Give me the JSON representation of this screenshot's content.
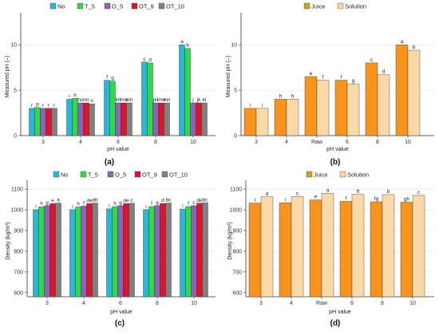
{
  "colors": {
    "No": "#2ab7d6",
    "T_5": "#2fd94a",
    "O_5": "#8f63b5",
    "OT_9": "#e0132a",
    "OT_10": "#808080",
    "Juice": "#cfa51b",
    "Solution": "#f6d5a0",
    "Bar_orange": "#f7941d",
    "Bar_light": "#fad9a8",
    "Mark_green": "#42b84a"
  },
  "chart_data": [
    {
      "id": "a",
      "label": "(a)",
      "type": "bar",
      "xlabel": "pH value",
      "ylabel": "Measured pH (–)",
      "ylim": [
        0,
        13
      ],
      "yticks": [
        0,
        5,
        10
      ],
      "grid": true,
      "legend": "top",
      "categories": [
        "3",
        "4",
        "6",
        "8",
        "10"
      ],
      "series": [
        {
          "name": "No",
          "values": [
            3.0,
            4.0,
            6.1,
            8.1,
            10.0
          ]
        },
        {
          "name": "T_5",
          "values": [
            3.1,
            4.1,
            6.0,
            8.0,
            9.6
          ]
        },
        {
          "name": "O_5",
          "values": [
            3.0,
            3.6,
            3.6,
            3.6,
            3.6
          ]
        },
        {
          "name": "OT_9",
          "values": [
            3.0,
            3.6,
            3.6,
            3.6,
            3.6
          ]
        },
        {
          "name": "OT_10",
          "values": [
            3.0,
            3.5,
            3.6,
            3.6,
            3.6
          ]
        }
      ],
      "annotations": [
        {
          "category": "3",
          "labels": [
            "r",
            "p",
            "r",
            "r",
            "r"
          ]
        },
        {
          "category": "4",
          "labels": [
            "i",
            "h",
            "no",
            "no",
            "o"
          ]
        },
        {
          "category": "6",
          "labels": [
            "f",
            "g",
            "lm",
            "lmn",
            "mn"
          ]
        },
        {
          "category": "8",
          "labels": [
            "c",
            "d",
            "jkl",
            "lmn",
            "mn"
          ]
        },
        {
          "category": "10",
          "labels": [
            "a",
            "b",
            "j",
            "jk",
            "kl"
          ]
        }
      ]
    },
    {
      "id": "b",
      "label": "(b)",
      "type": "bar",
      "xlabel": "pH value",
      "ylabel": "Measured pH (–)",
      "ylim": [
        0,
        13
      ],
      "yticks": [
        0,
        5,
        10
      ],
      "grid": true,
      "legend": "top",
      "categories": [
        "3",
        "4",
        "Raw",
        "6",
        "8",
        "10"
      ],
      "series": [
        {
          "name": "Juice",
          "values": [
            3.0,
            4.0,
            6.5,
            6.1,
            8.0,
            10.0
          ]
        },
        {
          "name": "Solution",
          "values": [
            3.0,
            4.0,
            6.1,
            5.7,
            6.7,
            9.4
          ]
        }
      ],
      "annotations": [
        {
          "category": "3",
          "labels": [
            "i",
            "i"
          ]
        },
        {
          "category": "4",
          "labels": [
            "h",
            "h"
          ]
        },
        {
          "category": "Raw",
          "labels": [
            "e",
            "f"
          ]
        },
        {
          "category": "6",
          "labels": [
            "f",
            "g"
          ]
        },
        {
          "category": "8",
          "labels": [
            "c",
            "d"
          ]
        },
        {
          "category": "10",
          "labels": [
            "a",
            "b"
          ]
        }
      ]
    },
    {
      "id": "c",
      "label": "(c)",
      "type": "bar",
      "xlabel": "pH value",
      "ylabel": "Density (kg/m³)",
      "ylim": [
        580,
        1120
      ],
      "yticks": [
        600,
        700,
        800,
        900,
        1000,
        1100
      ],
      "grid": true,
      "legend": "top",
      "categories": [
        "3",
        "4",
        "6",
        "8",
        "10"
      ],
      "series": [
        {
          "name": "No",
          "values": [
            1001,
            1001,
            1005,
            1001,
            1004
          ]
        },
        {
          "name": "T_5",
          "values": [
            1015,
            1014,
            1016,
            1016,
            1016
          ]
        },
        {
          "name": "O_5",
          "values": [
            1020,
            1018,
            1020,
            1020,
            1020
          ]
        },
        {
          "name": "OT_9",
          "values": [
            1030,
            1030,
            1030,
            1031,
            1032
          ]
        },
        {
          "name": "OT_10",
          "values": [
            1033,
            1033,
            1032,
            1033,
            1034
          ]
        }
      ],
      "annotations": [
        {
          "category": "3",
          "labels": [
            "i",
            "h",
            "g",
            "e",
            "a"
          ]
        },
        {
          "category": "4",
          "labels": [
            "i",
            "h",
            "f",
            "de",
            "ab"
          ]
        },
        {
          "category": "6",
          "labels": [
            "i",
            "h",
            "g",
            "de",
            "c"
          ]
        },
        {
          "category": "8",
          "labels": [
            "i",
            "f",
            "g",
            "d",
            "bc"
          ]
        },
        {
          "category": "10",
          "labels": [
            "i",
            "f",
            "c",
            "de",
            "bc"
          ]
        }
      ]
    },
    {
      "id": "d",
      "label": "(d)",
      "type": "bar",
      "xlabel": "pH value",
      "ylabel": "Density (kg/m³)",
      "ylim": [
        580,
        1120
      ],
      "yticks": [
        600,
        700,
        800,
        900,
        1000,
        1100
      ],
      "grid": true,
      "legend": "top",
      "categories": [
        "3",
        "4",
        "Raw",
        "6",
        "8",
        "10"
      ],
      "series": [
        {
          "name": "Juice",
          "values": [
            1033,
            1034,
            1048,
            1041,
            1039,
            1037
          ]
        },
        {
          "name": "Solution",
          "values": [
            1063,
            1064,
            1080,
            1075,
            1074,
            1070
          ]
        }
      ],
      "annotations": [
        {
          "category": "3",
          "labels": [
            "i",
            "d"
          ]
        },
        {
          "category": "4",
          "labels": [
            "i",
            "c"
          ]
        },
        {
          "category": "Raw",
          "labels": [
            "e",
            "a"
          ]
        },
        {
          "category": "6",
          "labels": [
            "f",
            "b"
          ]
        },
        {
          "category": "8",
          "labels": [
            "fg",
            "b"
          ]
        },
        {
          "category": "10",
          "labels": [
            "gh",
            "c"
          ]
        }
      ]
    }
  ]
}
